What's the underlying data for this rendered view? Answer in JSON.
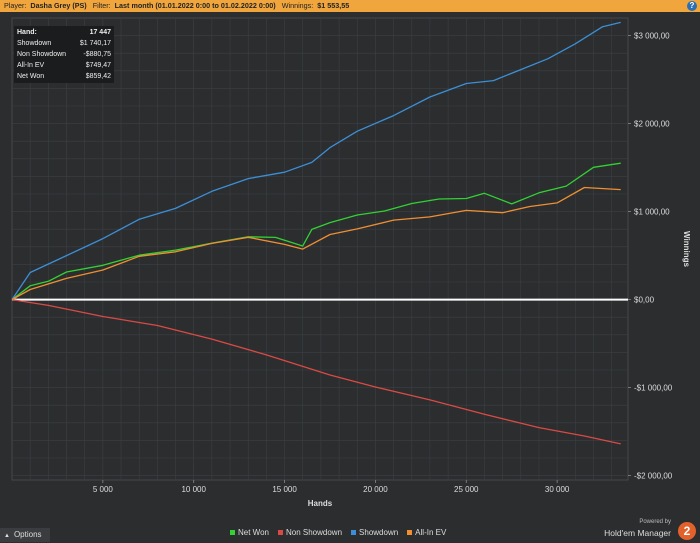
{
  "header": {
    "player_label": "Player:",
    "player_value": "Dasha Grey (PS)",
    "filter_label": "Filter:",
    "filter_value": "Last month (01.01.2022 0:00 to 01.02.2022 0:00)",
    "winnings_label": "Winnings:",
    "winnings_value": "$1 553,55",
    "help_label": "?"
  },
  "stats": [
    {
      "label": "Hand:",
      "value": "17 447"
    },
    {
      "label": "Showdown",
      "value": "$1 740,17"
    },
    {
      "label": "Non Showdown",
      "value": "-$880,75"
    },
    {
      "label": "All-In EV",
      "value": "$749,47"
    },
    {
      "label": "Net Won",
      "value": "$859,42"
    }
  ],
  "options_label": "Options",
  "brand": {
    "powered_by": "Powered by",
    "name": "Hold'em Manager",
    "logo": "2"
  },
  "colors": {
    "net_won": "#32d232",
    "non_showdown": "#d94a45",
    "showdown": "#3c8fd6",
    "all_in_ev": "#ef8f32",
    "zero_line": "#ffffff",
    "grid": "#3d4044",
    "background": "#2b2d2f"
  },
  "chart_data": {
    "type": "line",
    "title": "",
    "xlabel": "Hands",
    "ylabel": "Winnings",
    "xlim": [
      0,
      33900
    ],
    "ylim": [
      -2050,
      3200
    ],
    "x_ticks": [
      5000,
      10000,
      15000,
      20000,
      25000,
      30000
    ],
    "x_tick_labels": [
      "5 000",
      "10 000",
      "15 000",
      "20 000",
      "25 000",
      "30 000"
    ],
    "y_ticks": [
      3000,
      2000,
      1000,
      0,
      -1000,
      -2000
    ],
    "y_tick_labels": [
      "$3 000,00",
      "$2 000,00",
      "$1 000,00",
      "$0,00",
      "-$1 000,00",
      "-$2 000,00"
    ],
    "grid": true,
    "legend_position": "bottom",
    "series": [
      {
        "name": "Net Won",
        "color": "#32d232",
        "x": [
          0,
          1000,
          2000,
          3000,
          5000,
          7000,
          9000,
          11000,
          13000,
          14500,
          16000,
          16500,
          17500,
          19000,
          20500,
          22000,
          23500,
          25000,
          26000,
          27500,
          29000,
          30500,
          32000,
          33500
        ],
        "y": [
          0,
          150,
          220,
          300,
          400,
          500,
          560,
          650,
          700,
          720,
          600,
          800,
          880,
          950,
          1020,
          1080,
          1150,
          1150,
          1200,
          1100,
          1200,
          1300,
          1500,
          1550
        ]
      },
      {
        "name": "Non Showdown",
        "color": "#d94a45",
        "x": [
          0,
          2000,
          5000,
          8000,
          11000,
          14000,
          17500,
          20000,
          23000,
          26000,
          29000,
          31500,
          33500
        ],
        "y": [
          0,
          -80,
          -180,
          -300,
          -450,
          -620,
          -870,
          -980,
          -1150,
          -1300,
          -1450,
          -1560,
          -1640
        ]
      },
      {
        "name": "Showdown",
        "color": "#3c8fd6",
        "x": [
          0,
          1000,
          3000,
          5000,
          7000,
          9000,
          11000,
          13000,
          15000,
          16500,
          17500,
          19000,
          21000,
          23000,
          25000,
          26500,
          28000,
          29500,
          31000,
          32500,
          33500
        ],
        "y": [
          0,
          300,
          500,
          700,
          900,
          1050,
          1220,
          1380,
          1450,
          1550,
          1740,
          1900,
          2100,
          2300,
          2450,
          2500,
          2600,
          2750,
          2900,
          3100,
          3150
        ]
      },
      {
        "name": "All-In EV",
        "color": "#ef8f32",
        "x": [
          0,
          1000,
          3000,
          5000,
          7000,
          9000,
          11000,
          13000,
          15000,
          16000,
          17500,
          19000,
          21000,
          23000,
          25000,
          27000,
          28500,
          30000,
          31500,
          33500
        ],
        "y": [
          0,
          120,
          230,
          350,
          480,
          550,
          640,
          700,
          640,
          560,
          750,
          800,
          900,
          950,
          1000,
          1000,
          1050,
          1100,
          1280,
          1250
        ]
      }
    ]
  }
}
